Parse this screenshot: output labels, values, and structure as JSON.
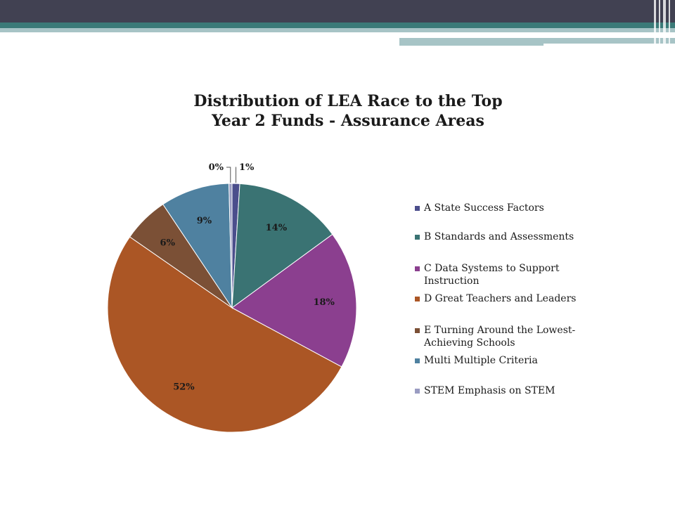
{
  "theme": {
    "header_dark": "#414152",
    "header_teal": "#3b7a78",
    "header_light": "#a7c4c6"
  },
  "chart_data": {
    "type": "pie",
    "title": [
      "Distribution of LEA Race to the Top",
      "Year 2 Funds - Assurance Areas"
    ],
    "legend_position": "right",
    "slices": [
      {
        "name": "A State Success Factors",
        "value": 1,
        "label": "1%",
        "color": "#4b4e8c"
      },
      {
        "name": "B Standards and Assessments",
        "value": 14,
        "label": "14%",
        "color": "#3a7373"
      },
      {
        "name": "C Data Systems to Support Instruction",
        "value": 18,
        "label": "18%",
        "color": "#8b3f8f"
      },
      {
        "name": "D Great Teachers and Leaders",
        "value": 52,
        "label": "52%",
        "color": "#ab5625"
      },
      {
        "name": "E Turning Around the Lowest-Achieving Schools",
        "value": 6,
        "label": "6%",
        "color": "#7b5036"
      },
      {
        "name": "Multi Multiple Criteria",
        "value": 9,
        "label": "9%",
        "color": "#4f81a0"
      },
      {
        "name": "STEM Emphasis on STEM",
        "value": 0.4,
        "label": "0%",
        "color": "#9a9cc2"
      }
    ]
  },
  "legend_lines": [
    [
      "A State Success Factors"
    ],
    [
      "B Standards and Assessments"
    ],
    [
      "C Data Systems to Support",
      "Instruction"
    ],
    [
      "D Great Teachers and Leaders"
    ],
    [
      "E Turning Around the Lowest-",
      "Achieving Schools"
    ],
    [
      "Multi Multiple Criteria"
    ],
    [
      "STEM Emphasis on STEM"
    ]
  ]
}
